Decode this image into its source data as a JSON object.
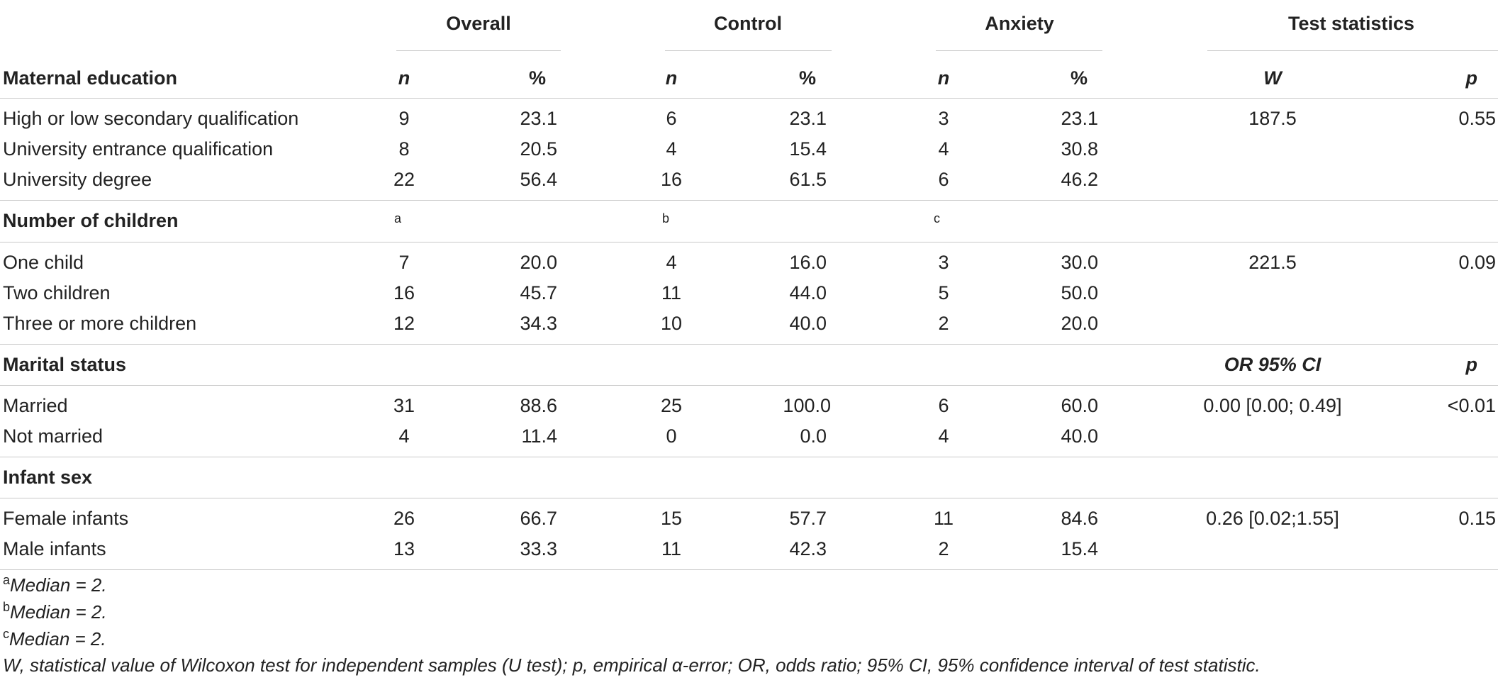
{
  "header": {
    "overall": "Overall",
    "control": "Control",
    "anxiety": "Anxiety",
    "test_statistics": "Test statistics",
    "n": "n",
    "pct": "%",
    "w": "W",
    "p": "p"
  },
  "sections": [
    {
      "title": "Maternal education",
      "rows": [
        {
          "label": "High or low secondary qualification",
          "overall_n": "9",
          "overall_pct": "23.1",
          "control_n": "6",
          "control_pct": "23.1",
          "anxiety_n": "3",
          "anxiety_pct": "23.1",
          "stat": "187.5",
          "p": "0.55"
        },
        {
          "label": "University entrance qualification",
          "overall_n": "8",
          "overall_pct": "20.5",
          "control_n": "4",
          "control_pct": "15.4",
          "anxiety_n": "4",
          "anxiety_pct": "30.8",
          "stat": "",
          "p": ""
        },
        {
          "label": "University degree",
          "overall_n": "22",
          "overall_pct": "56.4",
          "control_n": "16",
          "control_pct": "61.5",
          "anxiety_n": "6",
          "anxiety_pct": "46.2",
          "stat": "",
          "p": ""
        }
      ]
    },
    {
      "title": "Number of children",
      "superscripts": {
        "overall": "a",
        "control": "b",
        "anxiety": "c"
      },
      "rows": [
        {
          "label": "One child",
          "overall_n": "7",
          "overall_pct": "20.0",
          "control_n": "4",
          "control_pct": "16.0",
          "anxiety_n": "3",
          "anxiety_pct": "30.0",
          "stat": "221.5",
          "p": "0.09"
        },
        {
          "label": "Two children",
          "overall_n": "16",
          "overall_pct": "45.7",
          "control_n": "11",
          "control_pct": "44.0",
          "anxiety_n": "5",
          "anxiety_pct": "50.0",
          "stat": "",
          "p": ""
        },
        {
          "label": "Three or more children",
          "overall_n": "12",
          "overall_pct": "34.3",
          "control_n": "10",
          "control_pct": "40.0",
          "anxiety_n": "2",
          "anxiety_pct": "20.0",
          "stat": "",
          "p": ""
        }
      ]
    },
    {
      "title": "Marital status",
      "stat_header": "OR 95% CI",
      "p_header": "p",
      "rows": [
        {
          "label": "Married",
          "overall_n": "31",
          "overall_pct": "88.6",
          "control_n": "25",
          "control_pct": "100.0",
          "anxiety_n": "6",
          "anxiety_pct": "60.0",
          "stat": "0.00 [0.00; 0.49]",
          "p": "<0.01"
        },
        {
          "label": "Not married",
          "overall_n": "4",
          "overall_pct": "11.4",
          "control_n": "0",
          "control_pct": "0.0",
          "anxiety_n": "4",
          "anxiety_pct": "40.0",
          "stat": "",
          "p": ""
        }
      ]
    },
    {
      "title": "Infant sex",
      "rows": [
        {
          "label": "Female infants",
          "overall_n": "26",
          "overall_pct": "66.7",
          "control_n": "15",
          "control_pct": "57.7",
          "anxiety_n": "11",
          "anxiety_pct": "84.6",
          "stat": "0.26 [0.02;1.55]",
          "p": "0.15"
        },
        {
          "label": "Male infants",
          "overall_n": "13",
          "overall_pct": "33.3",
          "control_n": "11",
          "control_pct": "42.3",
          "anxiety_n": "2",
          "anxiety_pct": "15.4",
          "stat": "",
          "p": ""
        }
      ]
    }
  ],
  "footnotes": {
    "a": {
      "marker": "a",
      "text": "Median = 2."
    },
    "b": {
      "marker": "b",
      "text": "Median = 2."
    },
    "c": {
      "marker": "c",
      "text": "Median = 2."
    },
    "legend": "W, statistical value of Wilcoxon test for independent samples (U test); p, empirical α-error; OR, odds ratio; 95% CI, 95% confidence interval of test statistic."
  }
}
